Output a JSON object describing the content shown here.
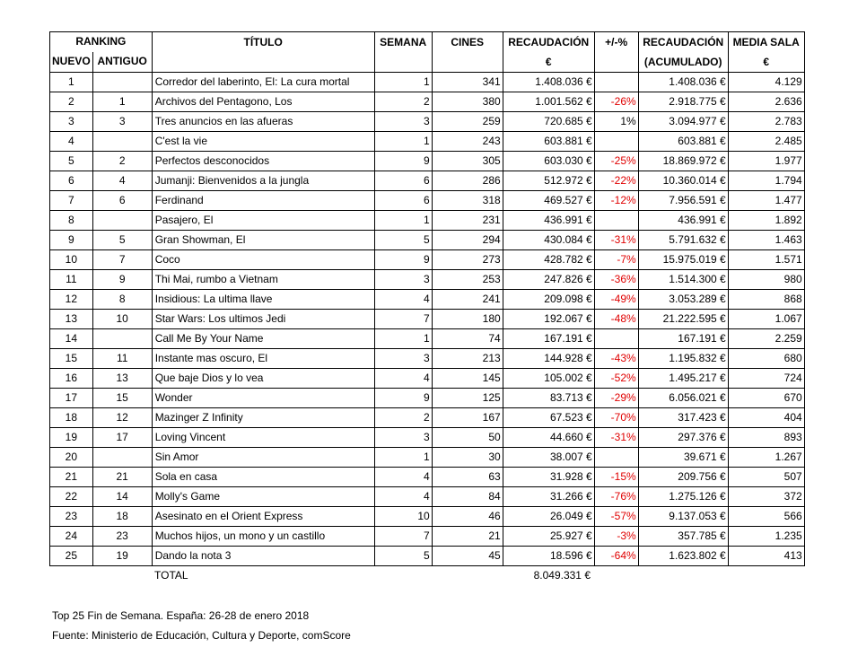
{
  "table": {
    "header": {
      "ranking": "RANKING",
      "ranking_sub": [
        "NUEVO",
        "ANTIGUO"
      ],
      "columns": [
        [
          "TÍTULO"
        ],
        [
          "SEMANA"
        ],
        [
          "CINES"
        ],
        [
          "RECAUDACIÓN",
          "€"
        ],
        [
          "+/-%"
        ],
        [
          "RECAUDACIÓN",
          "(ACUMULADO)"
        ],
        [
          "MEDIA SALA",
          "€"
        ]
      ]
    },
    "rows": [
      [
        "1",
        null,
        "Corredor del laberinto, El: La cura mortal",
        "1",
        "341",
        "1.408.036 €",
        null,
        "1.408.036 €",
        "4.129"
      ],
      [
        "2",
        "1",
        "Archivos del Pentagono, Los",
        "2",
        "380",
        "1.001.562 €",
        "-26%",
        "2.918.775 €",
        "2.636"
      ],
      [
        "3",
        "3",
        "Tres anuncios en las afueras",
        "3",
        "259",
        "720.685 €",
        "1%",
        "3.094.977 €",
        "2.783"
      ],
      [
        "4",
        null,
        "C'est la vie",
        "1",
        "243",
        "603.881 €",
        null,
        "603.881 €",
        "2.485"
      ],
      [
        "5",
        "2",
        "Perfectos desconocidos",
        "9",
        "305",
        "603.030 €",
        "-25%",
        "18.869.972 €",
        "1.977"
      ],
      [
        "6",
        "4",
        "Jumanji: Bienvenidos a la jungla",
        "6",
        "286",
        "512.972 €",
        "-22%",
        "10.360.014 €",
        "1.794"
      ],
      [
        "7",
        "6",
        "Ferdinand",
        "6",
        "318",
        "469.527 €",
        "-12%",
        "7.956.591 €",
        "1.477"
      ],
      [
        "8",
        null,
        "Pasajero, El",
        "1",
        "231",
        "436.991 €",
        null,
        "436.991 €",
        "1.892"
      ],
      [
        "9",
        "5",
        "Gran Showman, El",
        "5",
        "294",
        "430.084 €",
        "-31%",
        "5.791.632 €",
        "1.463"
      ],
      [
        "10",
        "7",
        "Coco",
        "9",
        "273",
        "428.782 €",
        "-7%",
        "15.975.019 €",
        "1.571"
      ],
      [
        "11",
        "9",
        "Thi Mai, rumbo a Vietnam",
        "3",
        "253",
        "247.826 €",
        "-36%",
        "1.514.300 €",
        "980"
      ],
      [
        "12",
        "8",
        "Insidious: La ultima llave",
        "4",
        "241",
        "209.098 €",
        "-49%",
        "3.053.289 €",
        "868"
      ],
      [
        "13",
        "10",
        "Star Wars: Los ultimos Jedi",
        "7",
        "180",
        "192.067 €",
        "-48%",
        "21.222.595 €",
        "1.067"
      ],
      [
        "14",
        null,
        "Call Me By Your Name",
        "1",
        "74",
        "167.191 €",
        null,
        "167.191 €",
        "2.259"
      ],
      [
        "15",
        "11",
        "Instante mas oscuro, El",
        "3",
        "213",
        "144.928 €",
        "-43%",
        "1.195.832 €",
        "680"
      ],
      [
        "16",
        "13",
        "Que baje Dios y lo vea",
        "4",
        "145",
        "105.002 €",
        "-52%",
        "1.495.217 €",
        "724"
      ],
      [
        "17",
        "15",
        "Wonder",
        "9",
        "125",
        "83.713 €",
        "-29%",
        "6.056.021 €",
        "670"
      ],
      [
        "18",
        "12",
        "Mazinger Z Infinity",
        "2",
        "167",
        "67.523 €",
        "-70%",
        "317.423 €",
        "404"
      ],
      [
        "19",
        "17",
        "Loving Vincent",
        "3",
        "50",
        "44.660 €",
        "-31%",
        "297.376 €",
        "893"
      ],
      [
        "20",
        null,
        "Sin Amor",
        "1",
        "30",
        "38.007 €",
        null,
        "39.671 €",
        "1.267"
      ],
      [
        "21",
        "21",
        "Sola en casa",
        "4",
        "63",
        "31.928 €",
        "-15%",
        "209.756 €",
        "507"
      ],
      [
        "22",
        "14",
        "Molly's Game",
        "4",
        "84",
        "31.266 €",
        "-76%",
        "1.275.126 €",
        "372"
      ],
      [
        "23",
        "18",
        "Asesinato en el Orient Express",
        "10",
        "46",
        "26.049 €",
        "-57%",
        "9.137.053 €",
        "566"
      ],
      [
        "24",
        "23",
        "Muchos hijos, un mono y un castillo",
        "7",
        "21",
        "25.927 €",
        "-3%",
        "357.785 €",
        "1.235"
      ],
      [
        "25",
        "19",
        "Dando la nota 3",
        "5",
        "45",
        "18.596 €",
        "-64%",
        "1.623.802 €",
        "413"
      ]
    ],
    "total": {
      "label": "TOTAL",
      "value": "8.049.331 €"
    }
  },
  "notes": [
    "Top 25 Fin de Semana. España: 26-28 de enero 2018",
    "Fuente: Ministerio de Educación, Cultura y Deporte, comScore"
  ]
}
